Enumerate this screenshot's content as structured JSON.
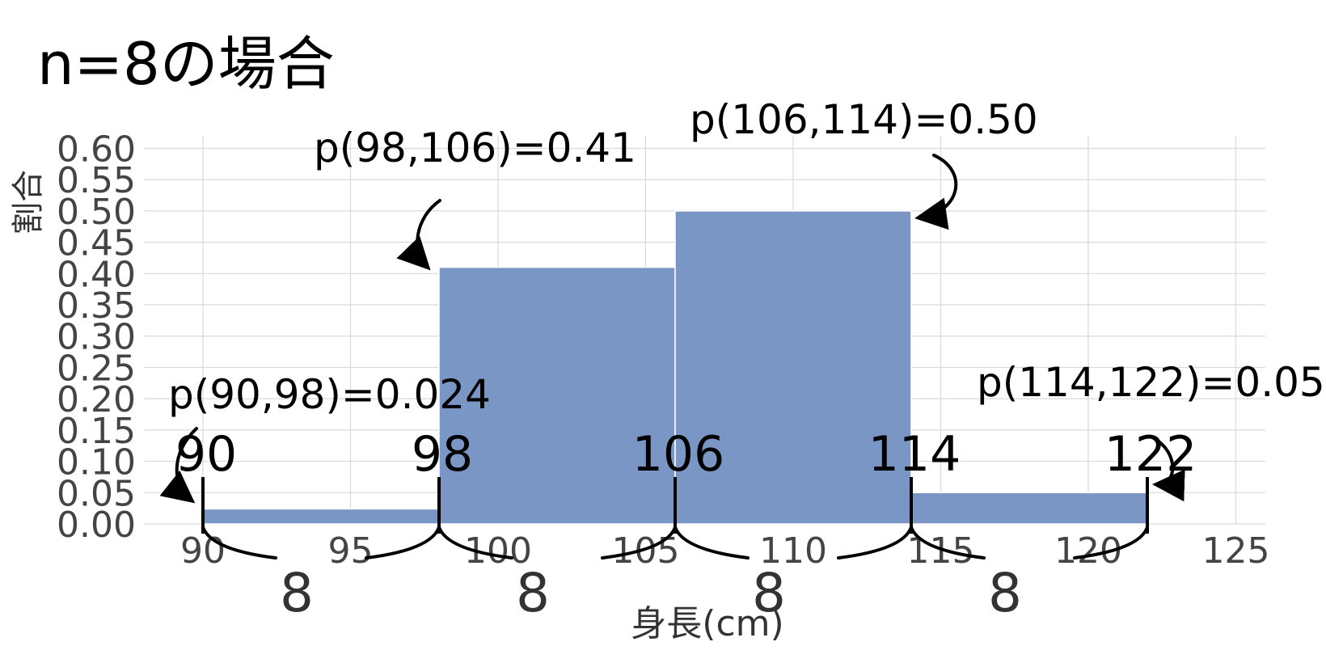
{
  "chart_data": {
    "type": "bar",
    "title": "n=8の場合",
    "xlabel": "身長(cm)",
    "ylabel": "割合",
    "xlim": [
      88,
      126
    ],
    "ylim": [
      0,
      0.62
    ],
    "grid": true,
    "bar_color": "#7a96c4",
    "x_ticks": [
      90,
      95,
      100,
      105,
      110,
      115,
      120,
      125
    ],
    "x_tick_labels": [
      "90",
      "95",
      "100",
      "105",
      "110",
      "115",
      "120",
      "125"
    ],
    "y_ticks": [
      0,
      0.05,
      0.1,
      0.15,
      0.2,
      0.25,
      0.3,
      0.35,
      0.4,
      0.45,
      0.5,
      0.55,
      0.6
    ],
    "y_tick_labels": [
      "0.00",
      "0.05",
      "0.10",
      "0.15",
      "0.20",
      "0.25",
      "0.30",
      "0.35",
      "0.40",
      "0.45",
      "0.50",
      "0.55",
      "0.60"
    ],
    "bins": [
      {
        "start": 90,
        "end": 98,
        "value": 0.024
      },
      {
        "start": 98,
        "end": 106,
        "value": 0.41
      },
      {
        "start": 106,
        "end": 114,
        "value": 0.5
      },
      {
        "start": 114,
        "end": 122,
        "value": 0.05
      }
    ],
    "bin_edges": [
      90,
      98,
      106,
      114,
      122
    ],
    "bin_edge_labels": [
      "90",
      "98",
      "106",
      "114",
      "122"
    ],
    "bin_width_labels": [
      "8",
      "8",
      "8",
      "8"
    ],
    "annotations": [
      {
        "text": "p(90,98)=0.024",
        "x": 90,
        "y": 0.024
      },
      {
        "text": "p(98,106)=0.41",
        "x": 98,
        "y": 0.41
      },
      {
        "text": "p(106,114)=0.50",
        "x": 114,
        "y": 0.5
      },
      {
        "text": "p(114,122)=0.05",
        "x": 122,
        "y": 0.05
      }
    ]
  }
}
